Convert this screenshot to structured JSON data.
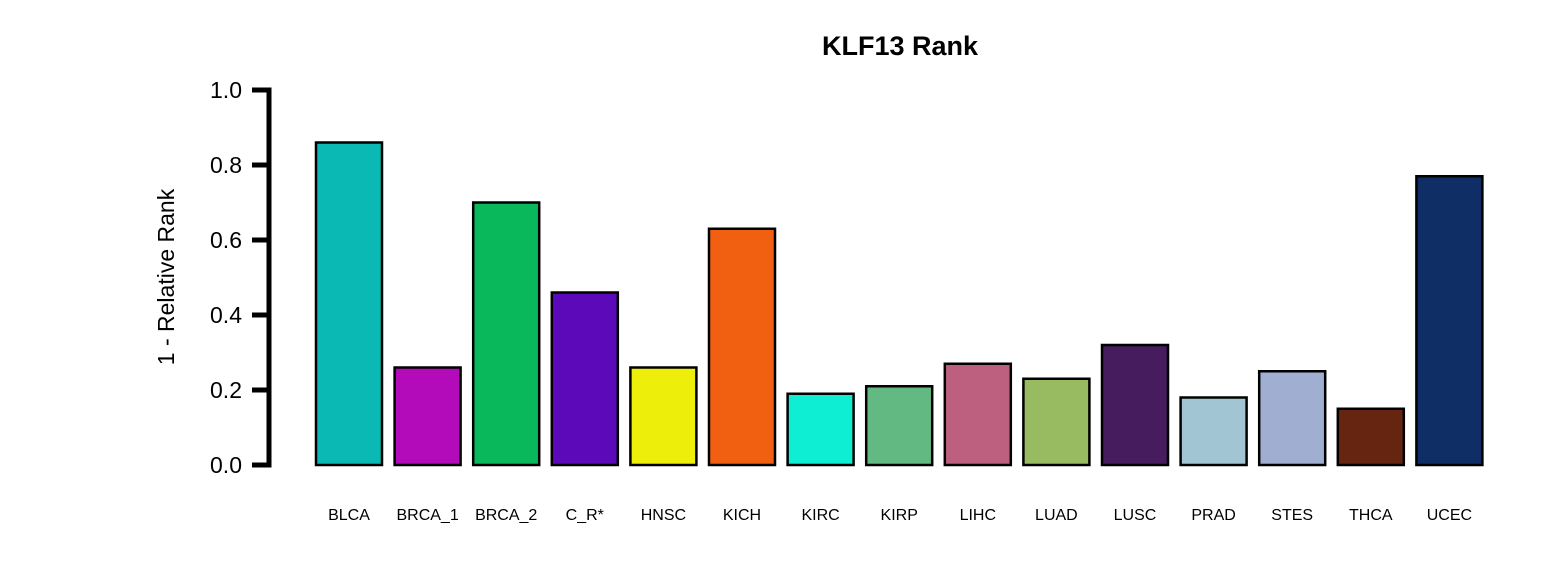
{
  "chart_data": {
    "type": "bar",
    "title": "KLF13 Rank",
    "xlabel": "",
    "ylabel": "1 - Relative Rank",
    "ylim": [
      0,
      1
    ],
    "yticks": [
      "0.0",
      "0.2",
      "0.4",
      "0.6",
      "0.8",
      "1.0"
    ],
    "grid": false,
    "legend": "none",
    "categories": [
      "BLCA",
      "BRCA_1",
      "BRCA_2",
      "C_R*",
      "HNSC",
      "KICH",
      "KIRC",
      "KIRP",
      "LIHC",
      "LUAD",
      "LUSC",
      "PRAD",
      "STES",
      "THCA",
      "UCEC"
    ],
    "values": [
      0.86,
      0.26,
      0.7,
      0.46,
      0.26,
      0.63,
      0.19,
      0.21,
      0.27,
      0.23,
      0.32,
      0.18,
      0.25,
      0.15,
      0.77
    ],
    "colors": [
      "#0ab9b3",
      "#b40bba",
      "#08b85a",
      "#5c0ab9",
      "#eeee0b",
      "#f06010",
      "#0eeed3",
      "#62b982",
      "#bd6080",
      "#98bb62",
      "#461c5f",
      "#a1c5d3",
      "#a0aed1",
      "#662510",
      "#0e2e65"
    ],
    "bar_edge_color": "#000000"
  }
}
